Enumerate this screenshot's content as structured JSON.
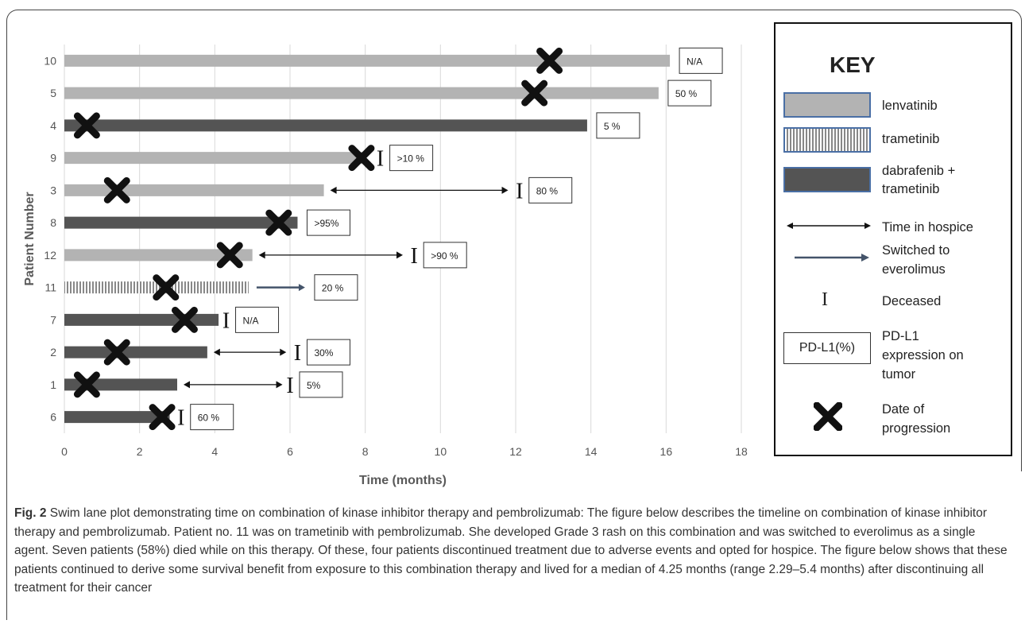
{
  "chart_data": {
    "type": "swimlane",
    "xlabel": "Time (months)",
    "ylabel": "Patient Number",
    "xlim": [
      0,
      18
    ],
    "xticks": [
      0,
      2,
      4,
      6,
      8,
      10,
      12,
      14,
      16,
      18
    ],
    "grid": "vertical",
    "rows": [
      {
        "patient": "10",
        "therapy": "lenvatinib",
        "end": 16.1,
        "progression": 12.9,
        "hospice_end": null,
        "deceased": null,
        "switched_to": null,
        "pdl1": "N/A"
      },
      {
        "patient": "5",
        "therapy": "lenvatinib",
        "end": 15.8,
        "progression": 12.5,
        "hospice_end": null,
        "deceased": null,
        "switched_to": null,
        "pdl1": "50 %"
      },
      {
        "patient": "4",
        "therapy": "dabrafenib + trametinib",
        "end": 13.9,
        "progression": 0.6,
        "hospice_end": null,
        "deceased": null,
        "switched_to": null,
        "pdl1": "5 %"
      },
      {
        "patient": "9",
        "therapy": "lenvatinib",
        "end": 8.0,
        "progression": 7.9,
        "hospice_end": null,
        "deceased": 8.4,
        "switched_to": null,
        "pdl1": ">10 %"
      },
      {
        "patient": "3",
        "therapy": "lenvatinib",
        "end": 6.9,
        "progression": 1.4,
        "hospice_end": 11.8,
        "deceased": 12.1,
        "switched_to": null,
        "pdl1": "80 %"
      },
      {
        "patient": "8",
        "therapy": "dabrafenib + trametinib",
        "end": 6.2,
        "progression": 5.7,
        "hospice_end": null,
        "deceased": null,
        "switched_to": null,
        "pdl1": ">95%"
      },
      {
        "patient": "12",
        "therapy": "lenvatinib",
        "end": 5.0,
        "progression": 4.4,
        "hospice_end": 9.0,
        "deceased": 9.3,
        "switched_to": null,
        "pdl1": ">90 %"
      },
      {
        "patient": "11",
        "therapy": "trametinib",
        "end": 4.9,
        "progression": 2.7,
        "hospice_end": null,
        "deceased": null,
        "switched_to": 6.4,
        "pdl1": "20 %"
      },
      {
        "patient": "7",
        "therapy": "dabrafenib + trametinib",
        "end": 4.1,
        "progression": 3.2,
        "hospice_end": null,
        "deceased": 4.3,
        "switched_to": null,
        "pdl1": "N/A"
      },
      {
        "patient": "2",
        "therapy": "dabrafenib + trametinib",
        "end": 3.8,
        "progression": 1.4,
        "hospice_end": 5.9,
        "deceased": 6.2,
        "switched_to": null,
        "pdl1": "30%"
      },
      {
        "patient": "1",
        "therapy": "dabrafenib + trametinib",
        "end": 3.0,
        "progression": 0.6,
        "hospice_end": 5.8,
        "deceased": 6.0,
        "switched_to": null,
        "pdl1": "5%"
      },
      {
        "patient": "6",
        "therapy": "dabrafenib + trametinib",
        "end": 2.8,
        "progression": 2.6,
        "hospice_end": null,
        "deceased": 3.1,
        "switched_to": null,
        "pdl1": "60 %"
      }
    ]
  },
  "colors": {
    "lenvatinib": "#b3b3b3",
    "trametinib_stripe": "#888888",
    "dabrafenib_trametinib": "#545454",
    "grid": "#d9d9d9",
    "switch_arrow": "#44546a",
    "key_border": "#4a6fa5"
  },
  "key": {
    "title": "KEY",
    "lenvatinib": "lenvatinib",
    "trametinib": "trametinib",
    "dabrafenib_line1": "dabrafenib +",
    "dabrafenib_line2": "trametinib",
    "hospice": "Time in hospice",
    "switched_line1": "Switched to",
    "switched_line2": "everolimus",
    "deceased_symbol": "I",
    "deceased": "Deceased",
    "pdl1_box": "PD-L1(%)",
    "pdl1_line1": "PD-L1",
    "pdl1_line2": "expression on",
    "pdl1_line3": "tumor",
    "progression_line1": "Date of",
    "progression_line2": "progression"
  },
  "caption": {
    "label": "Fig. 2",
    "text": "Swim lane plot demonstrating time on combination of kinase inhibitor therapy and pembrolizumab: The figure below describes the timeline on combination of kinase inhibitor therapy and pembrolizumab. Patient no. 11 was on trametinib with pembrolizumab. She developed Grade 3 rash on this combination and was switched to everolimus as a single agent. Seven patients (58%) died while on this therapy. Of these, four patients discontinued treatment due to adverse events and opted for hospice. The figure below shows that these patients continued to derive some survival benefit from exposure to this combination therapy and lived for a median of 4.25 months (range 2.29–5.4 months) after discontinuing all treatment for their cancer"
  }
}
